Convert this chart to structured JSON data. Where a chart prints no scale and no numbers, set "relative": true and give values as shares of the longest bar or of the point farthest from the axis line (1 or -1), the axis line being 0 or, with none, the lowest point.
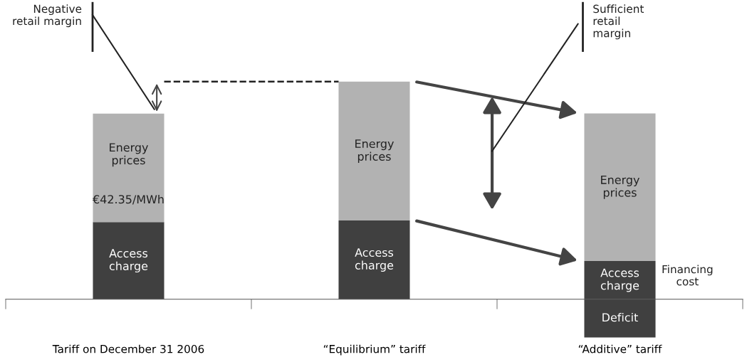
{
  "chart_data": {
    "type": "bar",
    "stacked": true,
    "relative": true,
    "categories": [
      "Tariff on December 31 2006",
      "“Equilibrium” tariff",
      "“Additive” tariff"
    ],
    "series": [
      {
        "name": "Access charge",
        "color": "#404040",
        "values": [
          0.355,
          0.362,
          0.176
        ]
      },
      {
        "name": "Energy prices",
        "color": "#b2b2b2",
        "values": [
          0.498,
          0.638,
          0.678
        ]
      },
      {
        "name": "Deficit",
        "color": "#404040",
        "values": [
          null,
          null,
          -0.176
        ]
      }
    ],
    "annotations": [
      "€42.35/MWh",
      "Negative retail margin",
      "Sufficient retail margin",
      "Financing cost"
    ]
  }
}
